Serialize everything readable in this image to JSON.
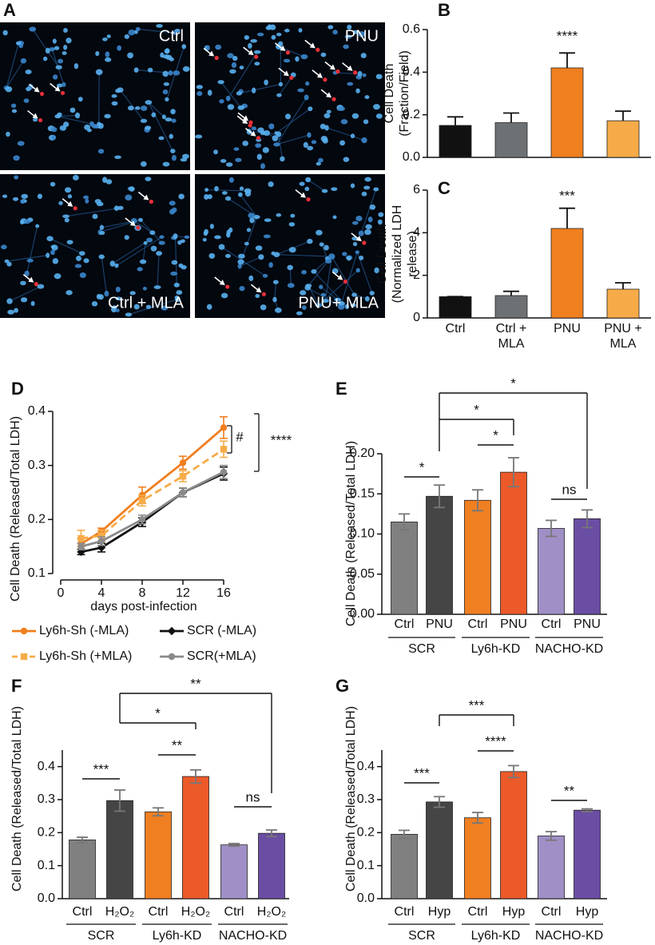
{
  "panel_a": {
    "panel": "A",
    "images": [
      "Ctrl",
      "PNU",
      "Ctrl + MLA",
      "PNU+ MLA"
    ]
  },
  "chart_data": [
    {
      "type": "bar",
      "panel": "B",
      "y_label": "Cell Death (Fraction/Field)",
      "values": [
        0.15,
        0.163,
        0.42,
        0.172
      ],
      "errors": [
        0.04,
        0.045,
        0.07,
        0.045
      ],
      "colors": [
        "#111111",
        "#6e7173",
        "#f07f1f",
        "#f7ab48"
      ],
      "ylim": [
        0,
        0.6
      ],
      "yticks": [
        {
          "value": 0,
          "label": "0.0"
        },
        0.2,
        0.4,
        0.6
      ],
      "annotations": [
        "****"
      ]
    },
    {
      "type": "bar",
      "panel": "C",
      "y_label": "Cell Death (Normalized LDH release)",
      "categories": [
        "Ctrl",
        "Ctrl + MLA",
        "PNU",
        "PNU + MLA"
      ],
      "values": [
        1.0,
        1.05,
        4.2,
        1.35
      ],
      "errors": [
        0,
        0.2,
        0.95,
        0.3
      ],
      "colors": [
        "#111111",
        "#6e7173",
        "#f07f1f",
        "#f7ab48"
      ],
      "ylim": [
        0,
        6
      ],
      "yticks": [
        0,
        2,
        4,
        6
      ],
      "annotations": [
        "***"
      ]
    },
    {
      "type": "line",
      "panel": "D",
      "x_label": "days post-infection",
      "y_label": "Cell Death (Released/Total LDH)",
      "x": [
        2,
        4,
        8,
        12,
        16
      ],
      "xlim": [
        0,
        16
      ],
      "xticks": [
        0,
        4,
        8,
        12,
        16
      ],
      "ylim": [
        0.1,
        0.4
      ],
      "yticks": [
        0.1,
        0.2,
        0.3,
        0.4
      ],
      "series": [
        {
          "name": "Ly6h-Sh (-MLA)",
          "color": "#f07f1f",
          "marker": "circle",
          "dashed": false,
          "values": [
            0.155,
            0.178,
            0.245,
            0.305,
            0.37
          ],
          "errors": [
            0.01,
            0.006,
            0.015,
            0.012,
            0.02
          ]
        },
        {
          "name": "Ly6h-Sh (+MLA)",
          "color": "#f7ab48",
          "marker": "square",
          "dashed": true,
          "values": [
            0.165,
            0.17,
            0.235,
            0.28,
            0.33
          ],
          "errors": [
            0.015,
            0.01,
            0.01,
            0.01,
            0.015
          ]
        },
        {
          "name": "SCR (-MLA)",
          "color": "#111111",
          "marker": "diamond",
          "dashed": false,
          "values": [
            0.14,
            0.148,
            0.195,
            0.25,
            0.285
          ],
          "errors": [
            0.005,
            0.008,
            0.008,
            0.008,
            0.012
          ]
        },
        {
          "name": "SCR(+MLA)",
          "color": "#8a8a8a",
          "marker": "circle",
          "dashed": false,
          "values": [
            0.15,
            0.16,
            0.2,
            0.25,
            0.288
          ],
          "errors": [
            0.006,
            0.008,
            0.008,
            0.008,
            0.012
          ]
        }
      ],
      "annotations": [
        "#",
        "****"
      ]
    },
    {
      "type": "bar",
      "panel": "E",
      "y_label": "Cell Death (Released/Total LDH)",
      "categories": [
        "Ctrl",
        "PNU",
        "Ctrl",
        "PNU",
        "Ctrl",
        "PNU"
      ],
      "groups": [
        "SCR",
        "Ly6h-KD",
        "NACHO-KD"
      ],
      "values": [
        0.115,
        0.147,
        0.142,
        0.177,
        0.107,
        0.119
      ],
      "errors": [
        0.01,
        0.014,
        0.013,
        0.018,
        0.01,
        0.011
      ],
      "colors": [
        "#808080",
        "#454545",
        "#f07f22",
        "#ec5a2a",
        "#a08fc6",
        "#6a4ea3"
      ],
      "ylim": [
        0,
        0.2
      ],
      "yticks": [
        {
          "value": 0,
          "label": "0.00"
        },
        0.05,
        {
          "value": 0.1,
          "label": "0.10"
        },
        0.15,
        {
          "value": 0.2,
          "label": "0.20"
        }
      ],
      "annotations": [
        "*",
        "*",
        "*",
        "*",
        "ns"
      ]
    },
    {
      "type": "bar",
      "panel": "F",
      "y_label": "Cell Death (Released/Total LDH)",
      "categories": [
        "Ctrl",
        "H₂O₂",
        "Ctrl",
        "H₂O₂",
        "Ctrl",
        "H₂O₂"
      ],
      "groups": [
        "SCR",
        "Ly6h-KD",
        "NACHO-KD"
      ],
      "values": [
        0.178,
        0.297,
        0.263,
        0.37,
        0.163,
        0.198
      ],
      "errors": [
        0.008,
        0.032,
        0.012,
        0.02,
        0.004,
        0.01
      ],
      "colors": [
        "#808080",
        "#454545",
        "#f07f22",
        "#ec5a2a",
        "#a08fc6",
        "#6a4ea3"
      ],
      "ylim": [
        0,
        0.45
      ],
      "yticks": [
        {
          "value": 0,
          "label": "0.0"
        },
        0.1,
        0.2,
        0.3,
        0.4
      ],
      "annotations": [
        "***",
        "**",
        "*",
        "**",
        "ns"
      ]
    },
    {
      "type": "bar",
      "panel": "G",
      "y_label": "Cell Death (Released/Total LDH)",
      "categories": [
        "Ctrl",
        "Hyp",
        "Ctrl",
        "Hyp",
        "Ctrl",
        "Hyp"
      ],
      "groups": [
        "SCR",
        "Ly6h-KD",
        "NACHO-KD"
      ],
      "values": [
        0.195,
        0.293,
        0.245,
        0.385,
        0.19,
        0.268
      ],
      "errors": [
        0.012,
        0.016,
        0.016,
        0.018,
        0.013,
        0.004
      ],
      "colors": [
        "#808080",
        "#454545",
        "#f07f22",
        "#ec5a2a",
        "#a08fc6",
        "#6a4ea3"
      ],
      "ylim": [
        0,
        0.45
      ],
      "yticks": [
        {
          "value": 0,
          "label": "0.0"
        },
        0.1,
        0.2,
        0.3,
        0.4
      ],
      "annotations": [
        "***",
        "***",
        "****",
        "**"
      ]
    }
  ]
}
